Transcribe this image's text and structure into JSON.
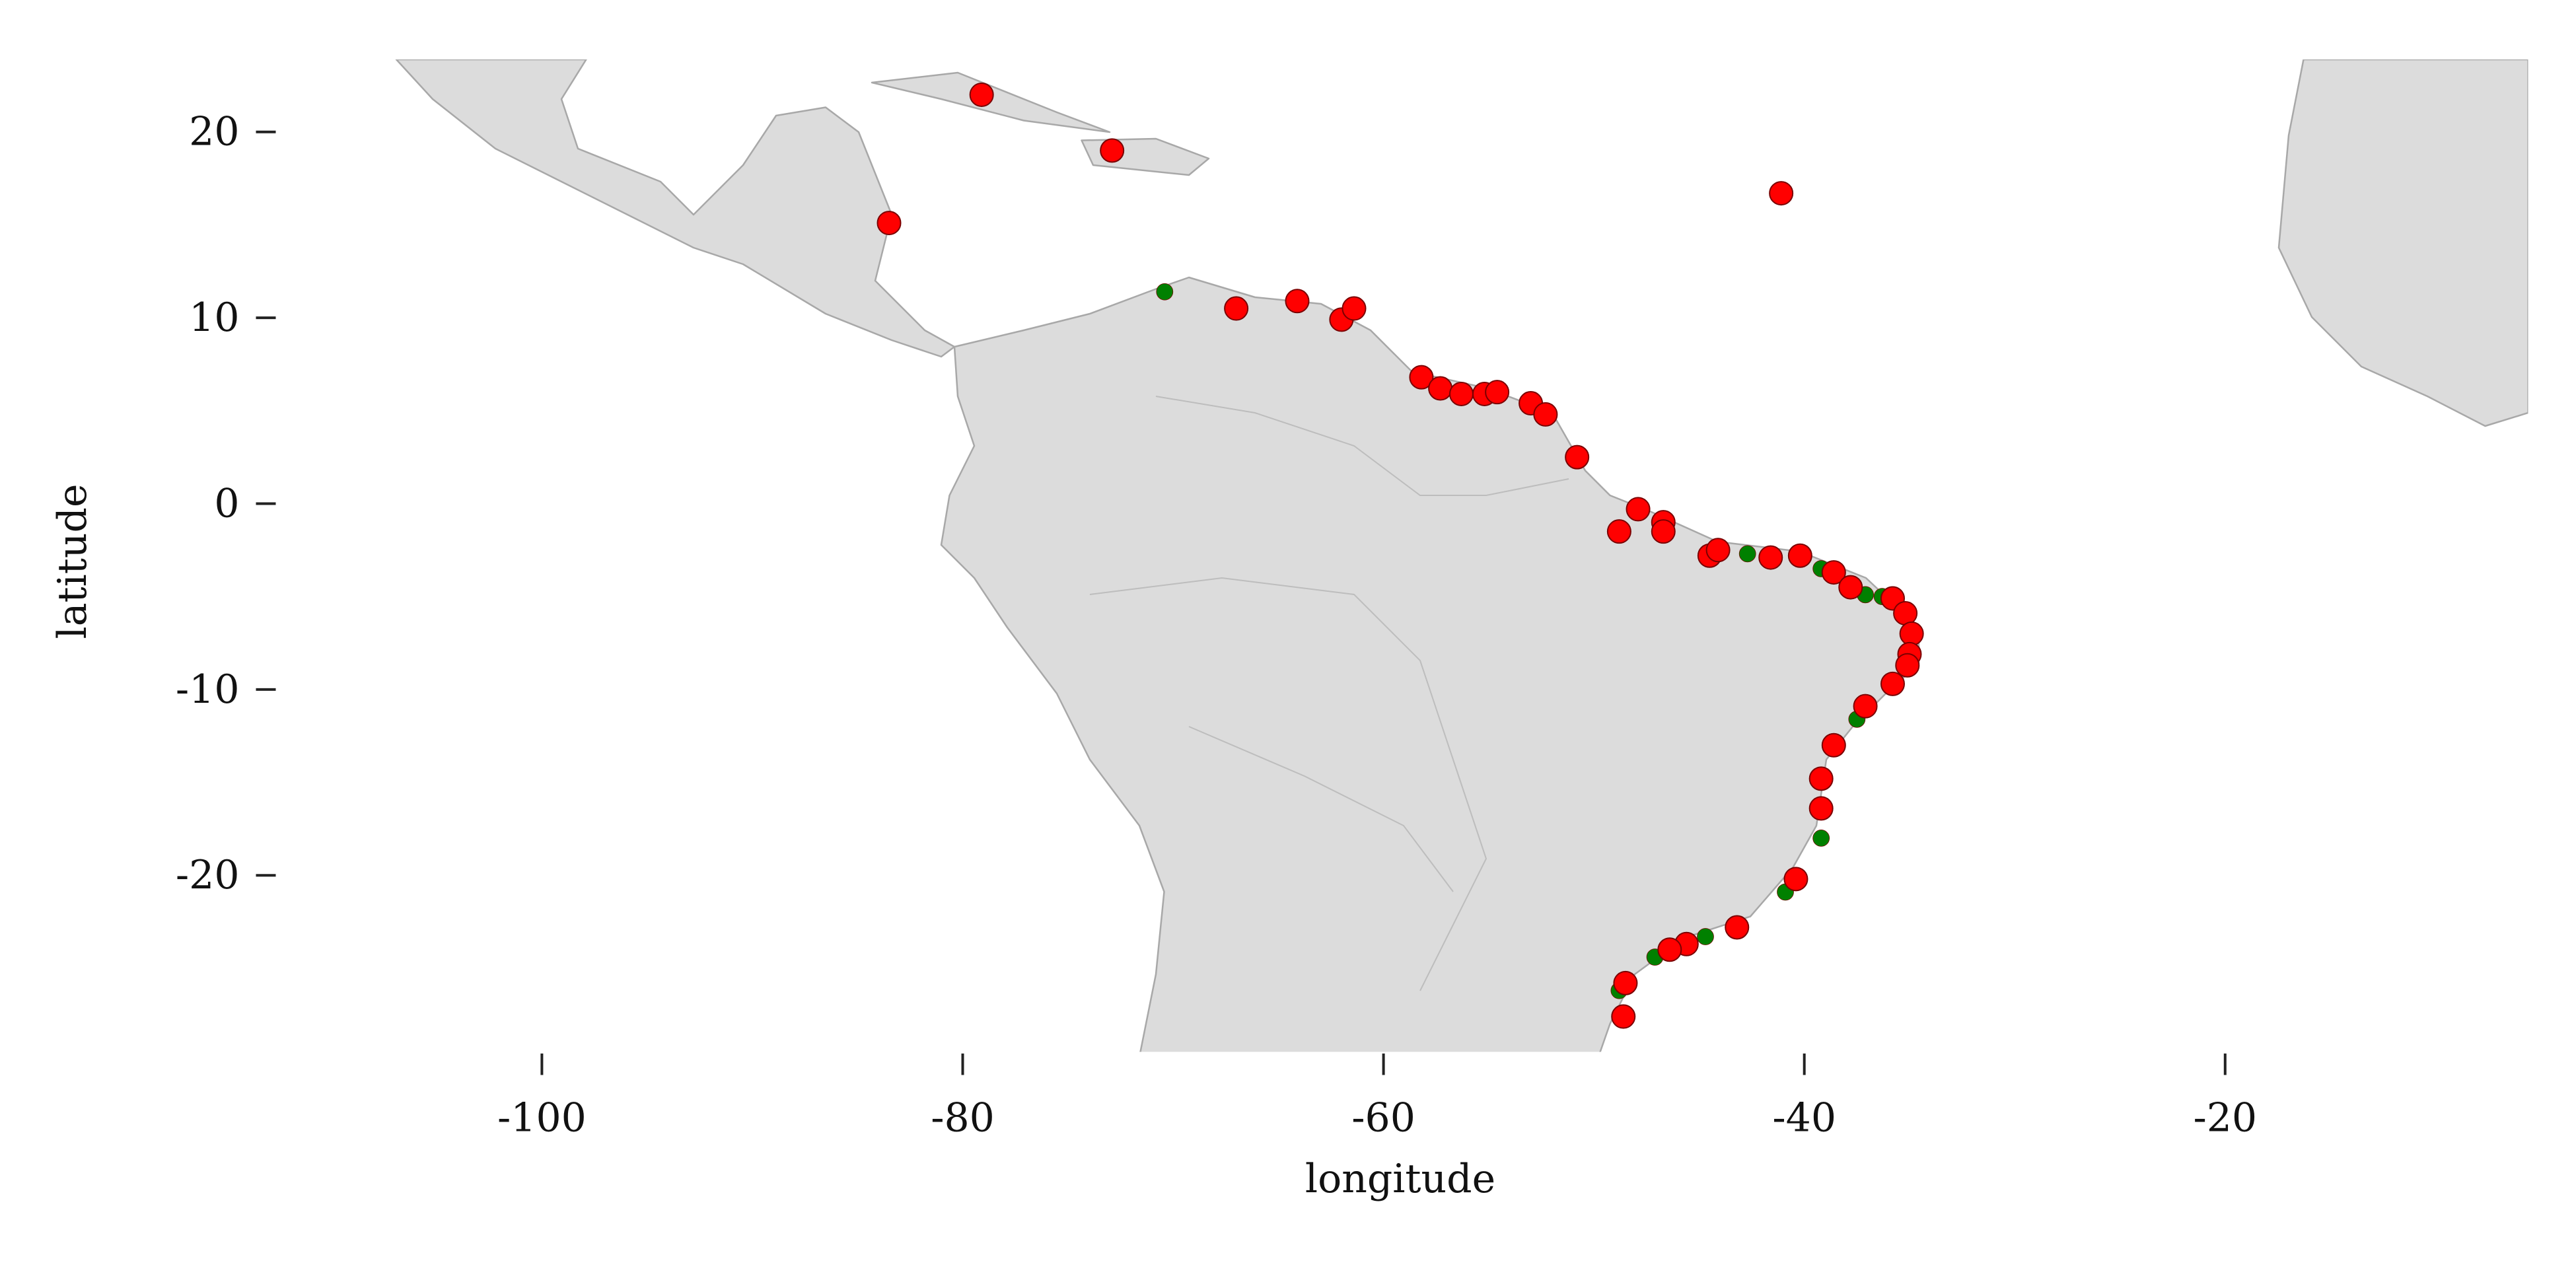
{
  "chart_data": {
    "type": "scatter",
    "x_label": "longitude",
    "y_label": "latitude",
    "xlim": [
      -111,
      -5.6
    ],
    "ylim": [
      -29.5,
      23.9
    ],
    "xticks": [
      -100,
      -80,
      -60,
      -40,
      -20
    ],
    "yticks": [
      -20,
      -10,
      0,
      10,
      20
    ],
    "series": [
      {
        "color": "#008000",
        "x": [
          -70.4,
          -42.7,
          -39.2,
          -37.1,
          -36.3,
          -37.5,
          -39.2,
          -40.9,
          -44.7,
          -47.1,
          -48.8
        ],
        "y": [
          11.4,
          -2.7,
          -3.5,
          -4.9,
          -5.0,
          -11.6,
          -18.0,
          -20.9,
          -23.3,
          -24.4,
          -26.2
        ]
      },
      {
        "color": "#ff0000",
        "x": [
          -79.1,
          -72.9,
          -83.5,
          -41.1,
          -67.0,
          -64.1,
          -62.0,
          -61.4,
          -58.2,
          -57.3,
          -56.3,
          -55.2,
          -54.6,
          -53.0,
          -52.3,
          -50.8,
          -47.9,
          -48.8,
          -46.7,
          -46.7,
          -44.5,
          -44.1,
          -41.6,
          -40.2,
          -38.6,
          -37.8,
          -35.8,
          -35.2,
          -34.9,
          -35.0,
          -35.1,
          -35.8,
          -37.1,
          -38.6,
          -39.2,
          -39.2,
          -40.4,
          -43.2,
          -45.6,
          -46.4,
          -48.5,
          -48.6
        ],
        "y": [
          22.0,
          19.0,
          15.1,
          16.7,
          10.5,
          10.9,
          9.9,
          10.5,
          6.8,
          6.2,
          5.9,
          5.9,
          6.0,
          5.4,
          4.8,
          2.5,
          -0.3,
          -1.5,
          -1.0,
          -1.5,
          -2.8,
          -2.5,
          -2.9,
          -2.8,
          -3.7,
          -4.5,
          -5.1,
          -5.9,
          -7.0,
          -8.1,
          -8.7,
          -9.7,
          -10.9,
          -13.0,
          -14.8,
          -16.4,
          -20.2,
          -22.8,
          -23.7,
          -24.0,
          -25.8,
          -27.6
        ]
      }
    ]
  }
}
